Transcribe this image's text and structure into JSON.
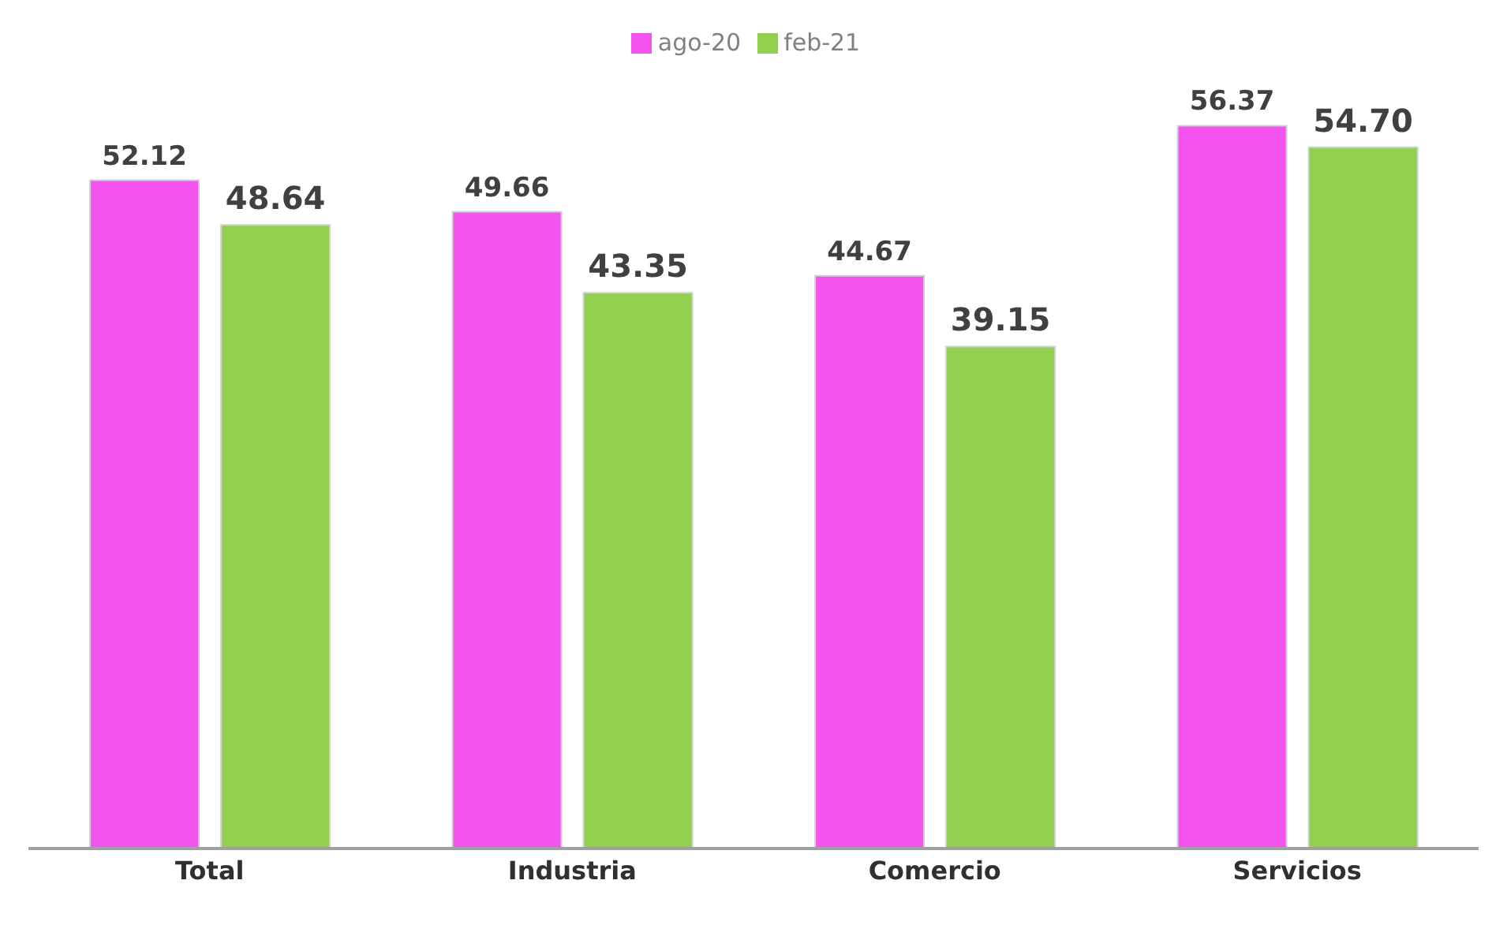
{
  "chart_data": {
    "type": "bar",
    "categories": [
      "Total",
      "Industria",
      "Comercio",
      "Servicios"
    ],
    "series": [
      {
        "name": "ago-20",
        "color": "#f553f0",
        "values": [
          52.12,
          49.66,
          44.67,
          56.37
        ],
        "value_labels": [
          "52.12",
          "49.66",
          "44.67",
          "56.37"
        ]
      },
      {
        "name": "feb-21",
        "color": "#92d050",
        "values": [
          48.64,
          43.35,
          39.15,
          54.7
        ],
        "value_labels": [
          "48.64",
          "43.35",
          "39.15",
          "54.70"
        ]
      }
    ],
    "legend": "top"
  }
}
